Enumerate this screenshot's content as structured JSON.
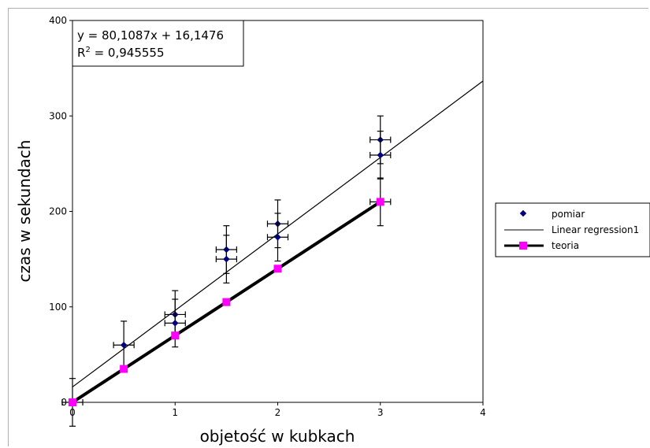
{
  "chart_data": {
    "type": "scatter",
    "xlabel": "objetość w kubkach",
    "ylabel": "czas w sekundach",
    "xlim": [
      0,
      4
    ],
    "ylim": [
      0,
      400
    ],
    "x_ticks": [
      "0",
      "1",
      "2",
      "3",
      "4"
    ],
    "y_ticks": [
      "0",
      "100",
      "200",
      "300",
      "400"
    ],
    "grid": false,
    "legend_position": "right",
    "equation": {
      "line1": "y = 80,1087x + 16,1476",
      "line2_prefix": "R",
      "line2_sup": "2",
      "line2_suffix": " = 0,945555"
    },
    "series": [
      {
        "name": "pomiar",
        "kind": "scatter-errorbars",
        "color": "#000080",
        "points": [
          {
            "x": 0.5,
            "y": 60,
            "xerr": 0.1,
            "yerr": 25
          },
          {
            "x": 1.0,
            "y": 92,
            "xerr": 0.1,
            "yerr": 25
          },
          {
            "x": 1.0,
            "y": 83,
            "xerr": 0.1,
            "yerr": 25
          },
          {
            "x": 1.5,
            "y": 160,
            "xerr": 0.1,
            "yerr": 25
          },
          {
            "x": 1.5,
            "y": 150,
            "xerr": 0.1,
            "yerr": 25
          },
          {
            "x": 2.0,
            "y": 187,
            "xerr": 0.1,
            "yerr": 25
          },
          {
            "x": 2.0,
            "y": 173,
            "xerr": 0.1,
            "yerr": 25
          },
          {
            "x": 3.0,
            "y": 275,
            "xerr": 0.1,
            "yerr": 25
          },
          {
            "x": 3.0,
            "y": 259,
            "xerr": 0.1,
            "yerr": 25
          },
          {
            "x": 3.0,
            "y": 210,
            "xerr": 0.1,
            "yerr": 25
          },
          {
            "x": 0.0,
            "y": 0,
            "xerr": 0.1,
            "yerr": 25
          }
        ]
      },
      {
        "name": "Linear regression1",
        "kind": "line",
        "color": "#000000",
        "slope": 80.1087,
        "intercept": 16.1476,
        "x_range": [
          0,
          4
        ]
      },
      {
        "name": "teoria",
        "kind": "line-markers",
        "color": "#ff00ff",
        "line_color": "#000000",
        "x": [
          0,
          0.5,
          1,
          1.5,
          2,
          3
        ],
        "y": [
          0,
          35,
          70,
          105,
          140,
          210
        ]
      }
    ]
  }
}
